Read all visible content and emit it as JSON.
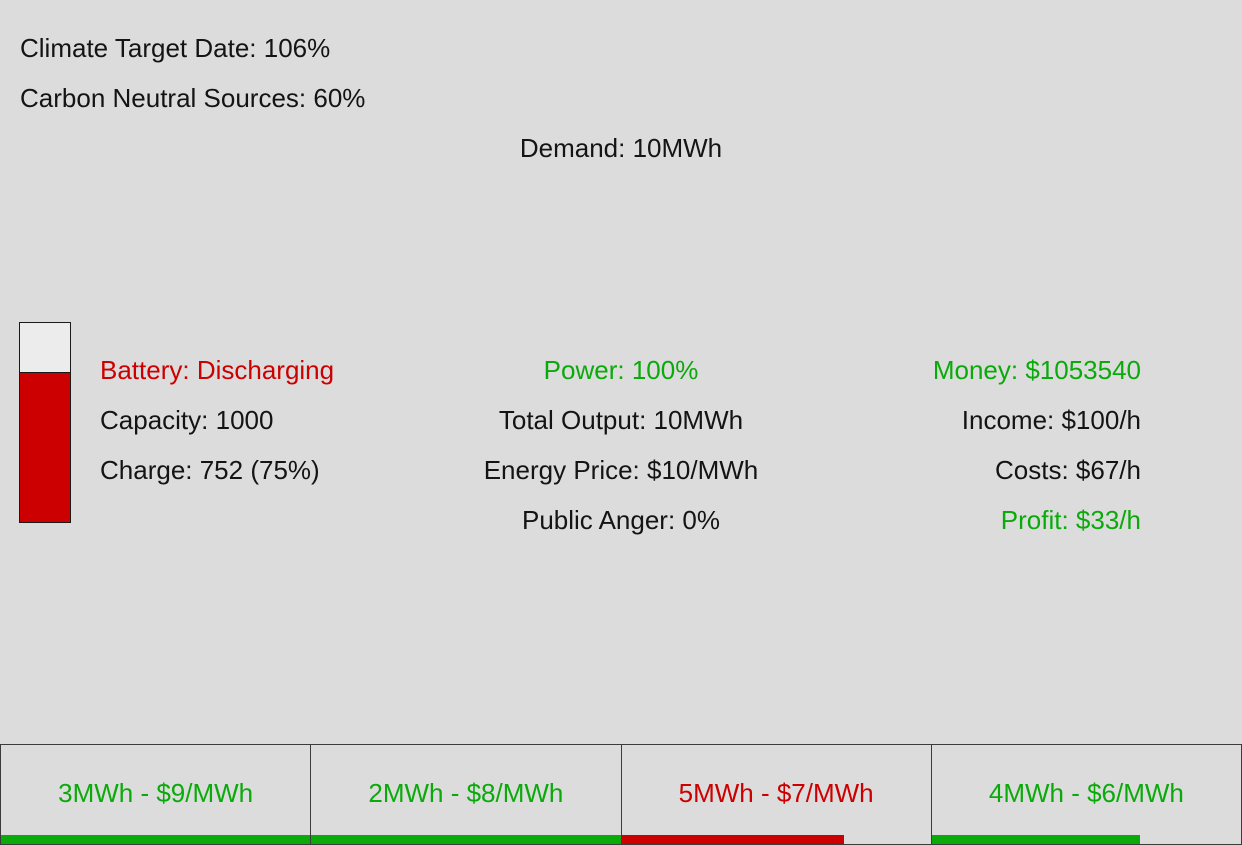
{
  "status": {
    "climate_target": "Climate Target Date: 106%",
    "carbon_neutral": "Carbon Neutral Sources: 60%",
    "demand": "Demand: 10MWh"
  },
  "battery": {
    "state": "Battery: Discharging",
    "capacity": "Capacity: 1000",
    "charge": "Charge: 752 (75%)",
    "charge_fraction": 0.75,
    "fill_color": "#cc0000"
  },
  "plant": {
    "power": "Power: 100%",
    "total_output": "Total Output: 10MWh",
    "energy_price": "Energy Price: $10/MWh",
    "public_anger": "Public Anger: 0%"
  },
  "finance": {
    "money": "Money: $1053540",
    "income": "Income: $100/h",
    "costs": "Costs: $67/h",
    "profit": "Profit: $33/h"
  },
  "colors": {
    "positive": "#0aaa0a",
    "negative": "#cc0000",
    "background": "#dcdcdc"
  },
  "offers": [
    {
      "label": "3MWh - $9/MWh",
      "status": "positive",
      "progress": 1.0
    },
    {
      "label": "2MWh - $8/MWh",
      "status": "positive",
      "progress": 1.0
    },
    {
      "label": "5MWh - $7/MWh",
      "status": "negative",
      "progress": 0.72
    },
    {
      "label": "4MWh - $6/MWh",
      "status": "positive",
      "progress": 0.675
    }
  ]
}
